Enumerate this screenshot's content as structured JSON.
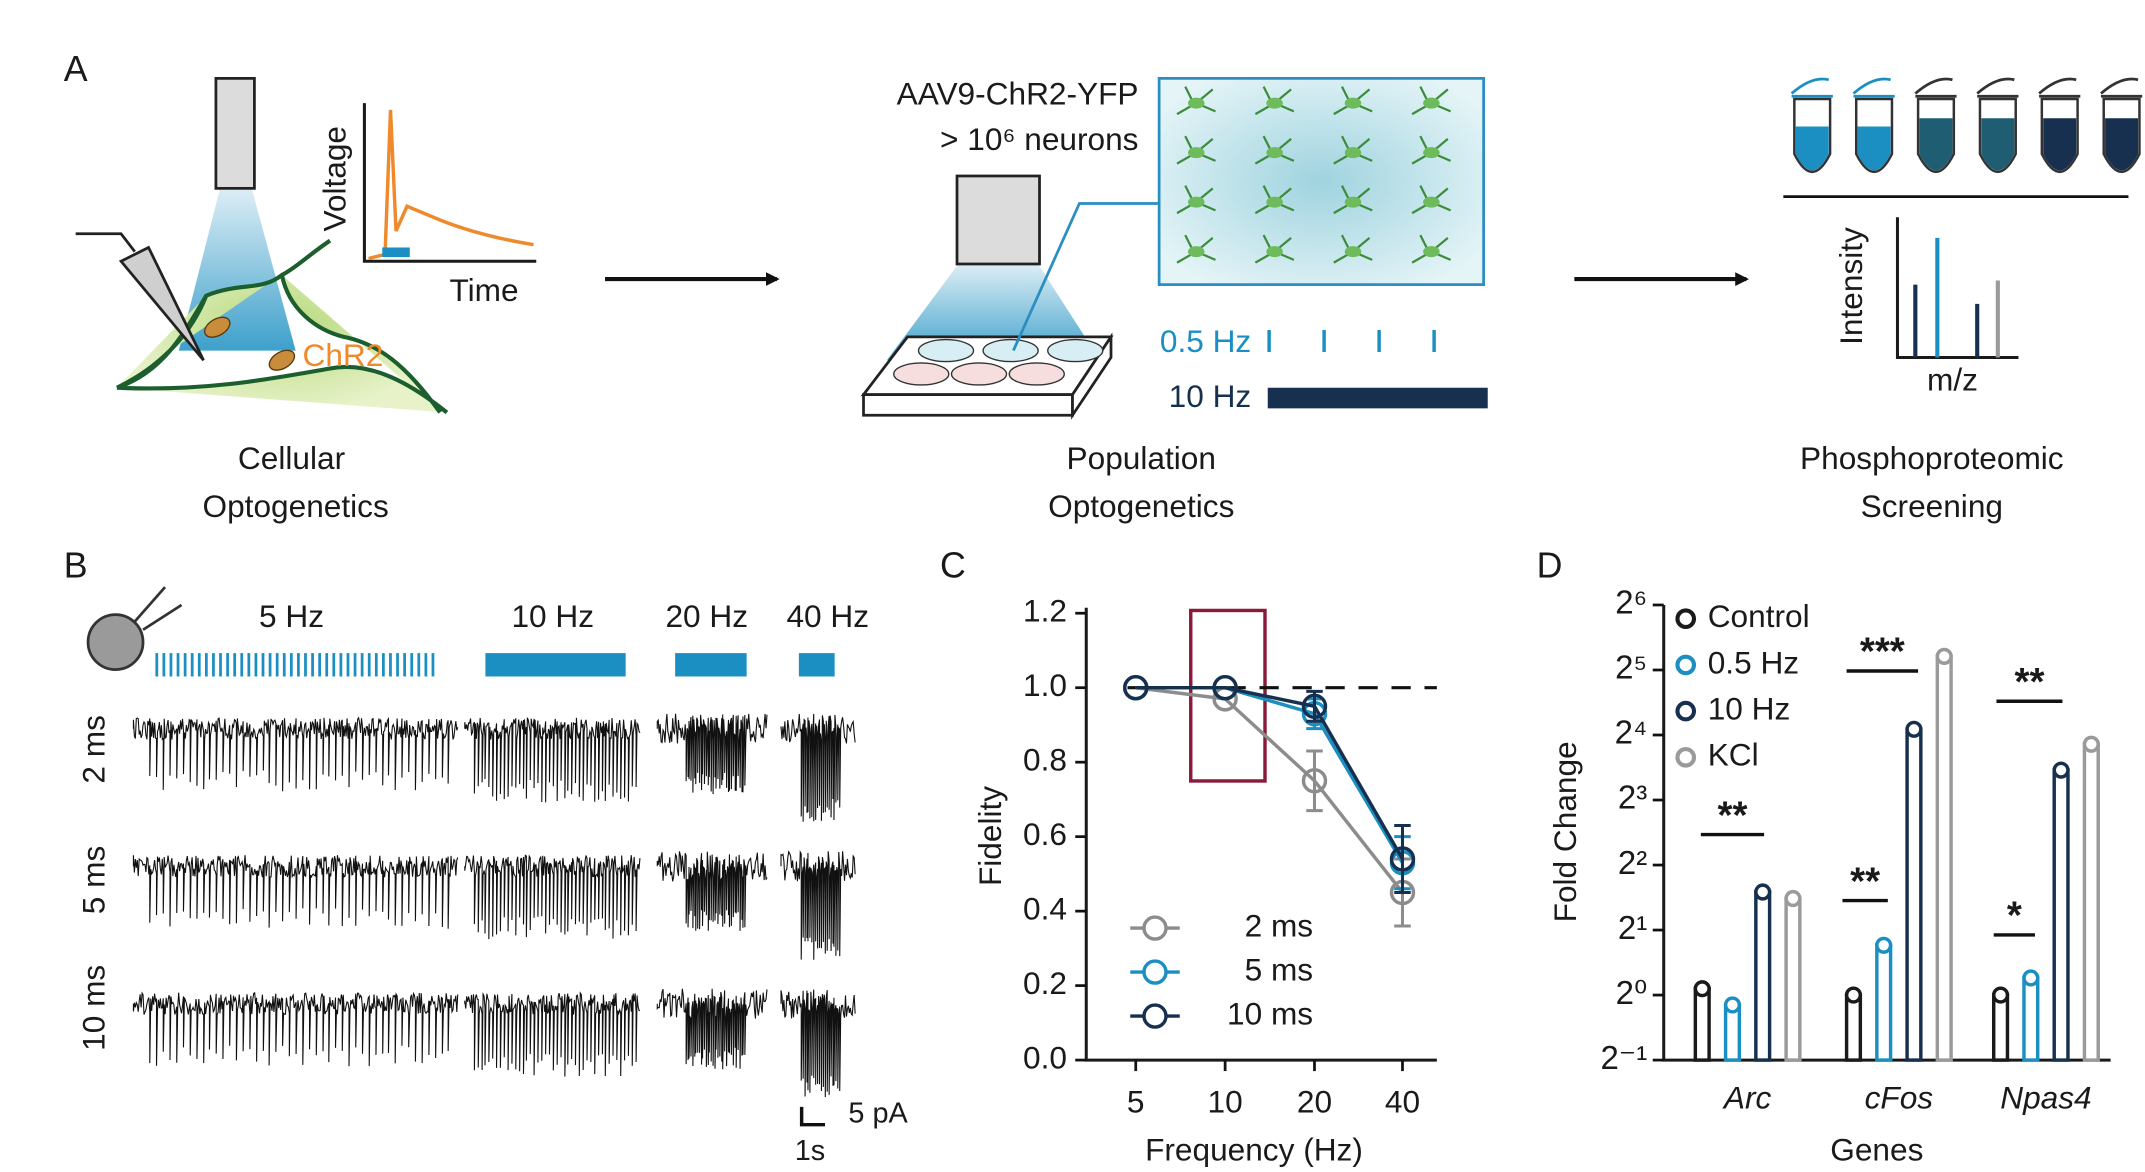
{
  "panel_labels": [
    "A",
    "B",
    "C",
    "D"
  ],
  "panel_a": {
    "trace_y_label": "Voltage",
    "trace_x_label": "Time",
    "opsin": "ChR2",
    "cellular_title": [
      "Cellular",
      "Optogenetics"
    ],
    "virus": "AAV9-ChR2-YFP",
    "neurons": "> 10⁶ neurons",
    "stim_protocols": [
      "0.5 Hz",
      "10 Hz"
    ],
    "population_title": [
      "Population",
      "Optogenetics"
    ],
    "spectrum_y_label": "Intensity",
    "spectrum_x_label": "m/z",
    "screening_title": [
      "Phosphoproteomic",
      "Screening"
    ]
  },
  "panel_b": {
    "frequencies": [
      "5 Hz",
      "10 Hz",
      "20 Hz",
      "40 Hz"
    ],
    "pulse_widths": [
      "2 ms",
      "5 ms",
      "10 ms"
    ],
    "scale_y": "5 pA",
    "scale_x": "1s"
  },
  "chart_data": [
    {
      "type": "line",
      "x_label": "Frequency (Hz)",
      "y_label": "Fidelity",
      "categories": [
        "5",
        "10",
        "20",
        "40"
      ],
      "ylim": [
        0,
        1.2
      ],
      "yticks": [
        {
          "value": 0,
          "label": "0.0"
        },
        {
          "value": 0.2,
          "label": "0.2"
        },
        {
          "value": 0.4,
          "label": "0.4"
        },
        {
          "value": 0.6,
          "label": "0.6"
        },
        {
          "value": 0.8,
          "label": "0.8"
        },
        {
          "value": 1,
          "label": "1.0"
        },
        {
          "value": 1.2,
          "label": "1.2"
        }
      ],
      "reference_line": 1,
      "legend": "lower left",
      "series": [
        {
          "name": "2 ms",
          "color": "#8c8c8c",
          "values": [
            1.0,
            0.97,
            0.75,
            0.45
          ],
          "errors": [
            0,
            0,
            0.08,
            0.09
          ]
        },
        {
          "name": "5 ms",
          "color": "#1b8fc2",
          "values": [
            1.0,
            1.0,
            0.93,
            0.53
          ],
          "errors": [
            0,
            0,
            0.04,
            0.07
          ]
        },
        {
          "name": "10 ms",
          "color": "#17304f",
          "values": [
            1.0,
            1.0,
            0.95,
            0.54
          ],
          "errors": [
            0,
            0,
            0.04,
            0.09
          ]
        }
      ]
    },
    {
      "type": "bar",
      "x_label": "Genes",
      "y_label": "Fold Change",
      "categories": [
        "Arc",
        "cFos",
        "Npas4"
      ],
      "log_base": 2,
      "ylim": [
        0.5,
        64
      ],
      "yticks": [
        {
          "value": 0.5,
          "label": "2⁻¹"
        },
        {
          "value": 1,
          "label": "2⁰"
        },
        {
          "value": 2,
          "label": "2¹"
        },
        {
          "value": 4,
          "label": "2²"
        },
        {
          "value": 8,
          "label": "2³"
        },
        {
          "value": 16,
          "label": "2⁴"
        },
        {
          "value": 32,
          "label": "2⁵"
        },
        {
          "value": 64,
          "label": "2⁶"
        }
      ],
      "legend": "upper left",
      "series": [
        {
          "name": "Control",
          "color": "#1a1a1a",
          "values": [
            1.07,
            1.0,
            1.0
          ]
        },
        {
          "name": "0.5 Hz",
          "color": "#1b8fc2",
          "values": [
            0.9,
            1.7,
            1.2
          ]
        },
        {
          "name": "10 Hz",
          "color": "#17304f",
          "values": [
            3.0,
            17,
            11
          ]
        },
        {
          "name": "KCl",
          "color": "#9a9a9a",
          "values": [
            2.8,
            37,
            14.5
          ]
        }
      ],
      "annotations": [
        {
          "text": "**"
        },
        {
          "text": "**"
        },
        {
          "text": "***"
        },
        {
          "text": "*"
        },
        {
          "text": "**"
        }
      ]
    }
  ]
}
